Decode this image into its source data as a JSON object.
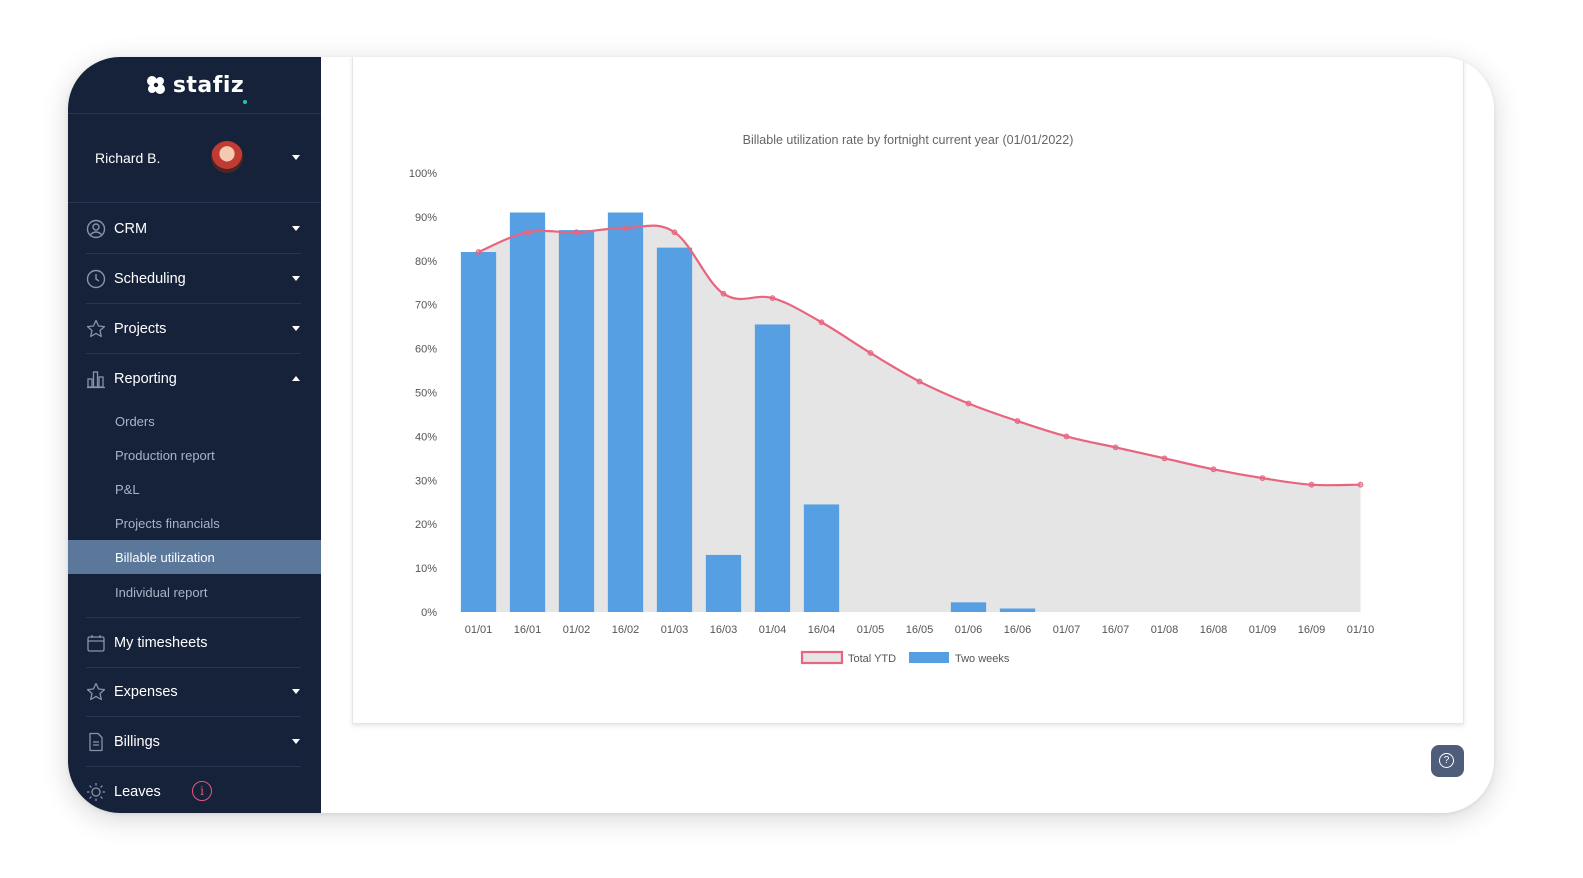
{
  "app": {
    "name": "stafiz"
  },
  "user": {
    "name": "Richard B."
  },
  "nav": {
    "crm": "CRM",
    "scheduling": "Scheduling",
    "projects": "Projects",
    "reporting": "Reporting",
    "reporting_items": [
      "Orders",
      "Production report",
      "P&L",
      "Projects financials",
      "Billable utilization",
      "Individual report"
    ],
    "timesheets": "My timesheets",
    "expenses": "Expenses",
    "billings": "Billings",
    "leaves": "Leaves",
    "info_glyph": "i"
  },
  "help": {
    "glyph": "?"
  },
  "colors": {
    "sidebar": "#16213a",
    "active": "#5b7799",
    "bar": "#569fe3",
    "line": "#e8657f",
    "area": "#e5e5e5"
  },
  "chart_data": {
    "type": "bar",
    "title": "Billable utilization rate by fortnight current year (01/01/2022)",
    "categories": [
      "01/01",
      "16/01",
      "01/02",
      "16/02",
      "01/03",
      "16/03",
      "01/04",
      "16/04",
      "01/05",
      "16/05",
      "01/06",
      "16/06",
      "01/07",
      "16/07",
      "01/08",
      "16/08",
      "01/09",
      "16/09",
      "01/10"
    ],
    "yticks": [
      "0%",
      "10%",
      "20%",
      "30%",
      "40%",
      "50%",
      "60%",
      "70%",
      "80%",
      "90%",
      "100%"
    ],
    "ylim": [
      0,
      100
    ],
    "series": [
      {
        "name": "Two weeks",
        "type": "bar",
        "color": "#569fe3",
        "values": [
          82,
          91,
          87,
          91,
          83,
          13,
          65.5,
          24.5,
          0,
          0,
          2.2,
          0.8,
          0,
          0,
          0,
          0,
          0,
          0,
          0
        ]
      },
      {
        "name": "Total YTD",
        "type": "area-line",
        "color": "#e8657f",
        "values": [
          82,
          86.5,
          86.5,
          87.5,
          86.5,
          72.5,
          71.5,
          66,
          59,
          52.5,
          47.5,
          43.5,
          40,
          37.5,
          35,
          32.5,
          30.5,
          29,
          29
        ]
      }
    ],
    "legend": [
      "Total YTD",
      "Two weeks"
    ],
    "legend_position": "bottom"
  }
}
